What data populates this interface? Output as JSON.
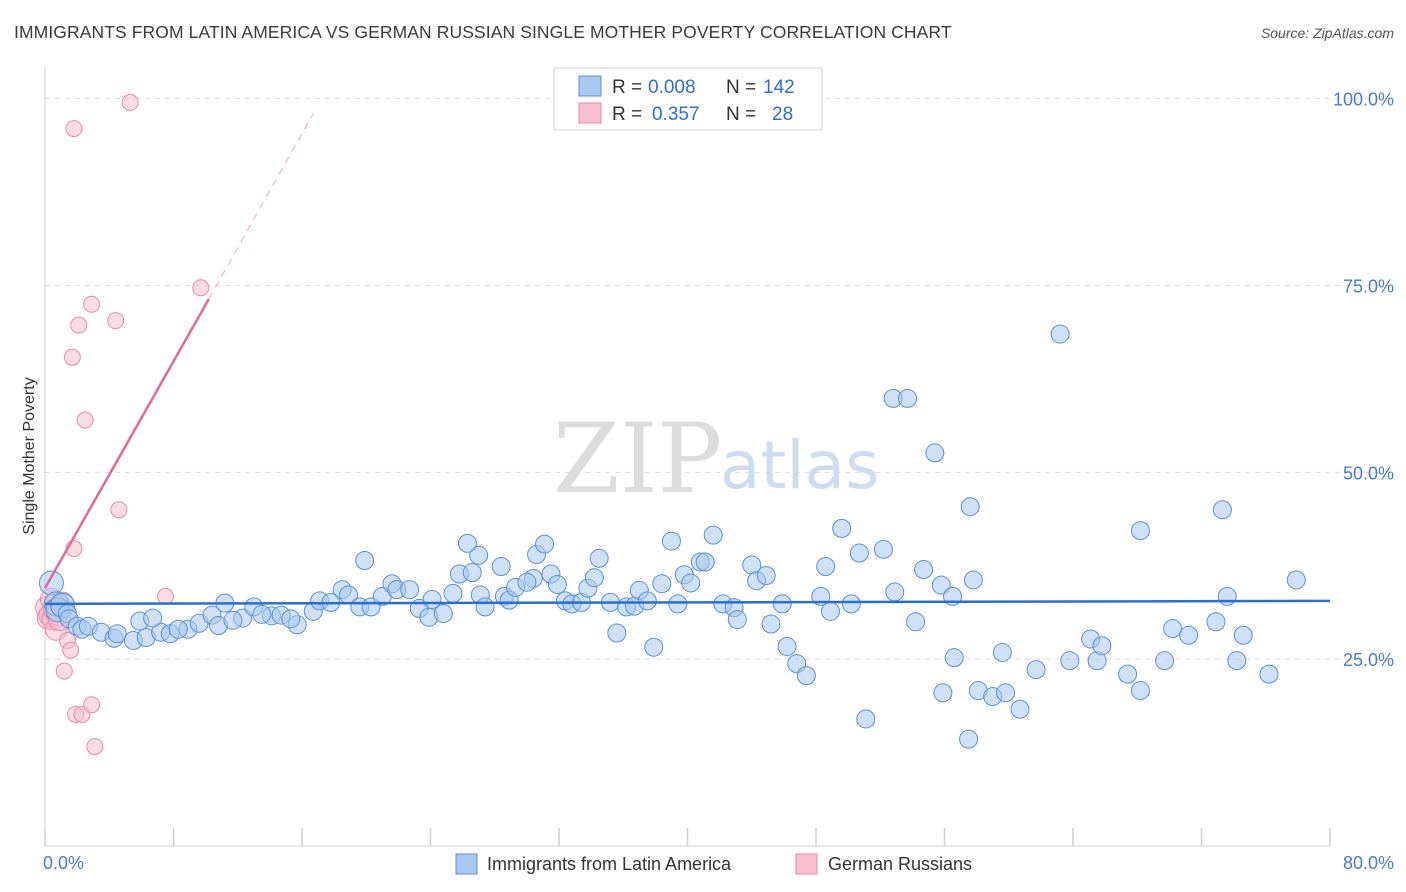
{
  "title": "IMMIGRANTS FROM LATIN AMERICA VS GERMAN RUSSIAN SINGLE MOTHER POVERTY CORRELATION CHART",
  "source": "Source: ZipAtlas.com",
  "watermark": {
    "zip": "ZIP",
    "atlas": "atlas"
  },
  "colors": {
    "blue_fill": "#a9c8f0",
    "blue_stroke": "#5a8fd6",
    "blue_line": "#2a6fd0",
    "pink_fill": "#f7bfd0",
    "pink_stroke": "#e58aa8",
    "pink_line": "#e0699a"
  },
  "legend": {
    "r_label": "R =",
    "n_label": "N =",
    "series": [
      {
        "r": "0.008",
        "n": "142"
      },
      {
        "r": "0.357",
        "n": "28"
      }
    ]
  },
  "chart_data": {
    "type": "scatter",
    "title": "IMMIGRANTS FROM LATIN AMERICA VS GERMAN RUSSIAN SINGLE MOTHER POVERTY CORRELATION CHART",
    "xlabel": "",
    "ylabel": "Single Mother Poverty",
    "xlim": [
      0,
      80
    ],
    "ylim": [
      0,
      102.5
    ],
    "x_tick_labels": [
      "0.0%",
      "80.0%"
    ],
    "y_ticks": [
      25,
      50,
      75,
      100
    ],
    "y_tick_labels": [
      "25.0%",
      "50.0%",
      "75.0%",
      "100.0%"
    ],
    "grid": true,
    "legend_position": "top-center",
    "series": [
      {
        "name": "Immigrants from Latin America",
        "r": 0.008,
        "n": 142,
        "trend": {
          "x": [
            0,
            80
          ],
          "y": [
            32.4,
            32.8
          ]
        },
        "points": [
          [
            0.4,
            35.2
          ],
          [
            0.7,
            32.4
          ],
          [
            0.8,
            31.6
          ],
          [
            1.1,
            32.2
          ],
          [
            1.4,
            31.1
          ],
          [
            1.5,
            30.4
          ],
          [
            2,
            29.4
          ],
          [
            2.3,
            29
          ],
          [
            2.7,
            29.4
          ],
          [
            3.5,
            28.6
          ],
          [
            4.3,
            27.8
          ],
          [
            4.5,
            28.4
          ],
          [
            5.5,
            27.5
          ],
          [
            6.3,
            27.9
          ],
          [
            7.2,
            28.6
          ],
          [
            7.8,
            28.4
          ],
          [
            8.9,
            29
          ],
          [
            5.9,
            30.1
          ],
          [
            6.7,
            30.5
          ],
          [
            8.3,
            29
          ],
          [
            9.6,
            29.8
          ],
          [
            10.4,
            30.9
          ],
          [
            11.2,
            32.5
          ],
          [
            10.8,
            29.5
          ],
          [
            12.3,
            30.5
          ],
          [
            11.7,
            30.2
          ],
          [
            14.1,
            30.8
          ],
          [
            13,
            32
          ],
          [
            13.5,
            31
          ],
          [
            14.7,
            30.9
          ],
          [
            15.7,
            29.6
          ],
          [
            15.3,
            30.4
          ],
          [
            16.7,
            31.4
          ],
          [
            17.1,
            32.8
          ],
          [
            17.8,
            32.6
          ],
          [
            18.5,
            34.3
          ],
          [
            18.9,
            33.6
          ],
          [
            19.6,
            32
          ],
          [
            20.3,
            32
          ],
          [
            19.9,
            38.2
          ],
          [
            21,
            33.4
          ],
          [
            21.6,
            35.1
          ],
          [
            21.9,
            34.3
          ],
          [
            22.7,
            34.3
          ],
          [
            23.3,
            31.8
          ],
          [
            23.9,
            30.6
          ],
          [
            24.1,
            33
          ],
          [
            24.8,
            31.1
          ],
          [
            25.4,
            33.8
          ],
          [
            25.8,
            36.4
          ],
          [
            26.6,
            36.6
          ],
          [
            27,
            38.9
          ],
          [
            27.1,
            33.6
          ],
          [
            27.4,
            32
          ],
          [
            26.3,
            40.5
          ],
          [
            28.6,
            33.4
          ],
          [
            28.9,
            32.9
          ],
          [
            29.3,
            34.6
          ],
          [
            28.4,
            37.4
          ],
          [
            30.4,
            35.8
          ],
          [
            30.6,
            39
          ],
          [
            30,
            35.3
          ],
          [
            31.1,
            40.4
          ],
          [
            31.5,
            36.4
          ],
          [
            31.9,
            35
          ],
          [
            32.4,
            32.8
          ],
          [
            32.8,
            32.4
          ],
          [
            33.4,
            32.6
          ],
          [
            33.8,
            34.5
          ],
          [
            34.2,
            35.9
          ],
          [
            34.5,
            38.5
          ],
          [
            35.2,
            32.6
          ],
          [
            35.6,
            28.5
          ],
          [
            36.2,
            32
          ],
          [
            36.7,
            32.1
          ],
          [
            37,
            34.2
          ],
          [
            37.5,
            32.8
          ],
          [
            37.9,
            26.6
          ],
          [
            38.4,
            35.1
          ],
          [
            39,
            40.8
          ],
          [
            39.4,
            32.4
          ],
          [
            39.8,
            36.3
          ],
          [
            40.2,
            35.2
          ],
          [
            40.8,
            38
          ],
          [
            41.1,
            38
          ],
          [
            41.6,
            41.6
          ],
          [
            42.2,
            32.4
          ],
          [
            42.9,
            31.9
          ],
          [
            43.1,
            30.3
          ],
          [
            44,
            37.6
          ],
          [
            44.3,
            35.5
          ],
          [
            44.9,
            36.2
          ],
          [
            45.2,
            29.7
          ],
          [
            45.9,
            32.4
          ],
          [
            46.2,
            26.7
          ],
          [
            46.8,
            24.4
          ],
          [
            47.4,
            22.8
          ],
          [
            48.6,
            37.4
          ],
          [
            48.9,
            31.4
          ],
          [
            48.3,
            33.4
          ],
          [
            49.6,
            42.5
          ],
          [
            50.2,
            32.4
          ],
          [
            50.7,
            39.2
          ],
          [
            51.1,
            17
          ],
          [
            52.2,
            39.7
          ],
          [
            52.8,
            59.9
          ],
          [
            52.9,
            34
          ],
          [
            53.7,
            59.9
          ],
          [
            54.2,
            30
          ],
          [
            54.7,
            37
          ],
          [
            55.4,
            52.6
          ],
          [
            55.8,
            34.9
          ],
          [
            55.9,
            20.5
          ],
          [
            56.5,
            33.4
          ],
          [
            57.8,
            35.6
          ],
          [
            57.6,
            45.4
          ],
          [
            58.1,
            20.8
          ],
          [
            59,
            20
          ],
          [
            59.8,
            20.5
          ],
          [
            59.6,
            25.9
          ],
          [
            60.7,
            18.3
          ],
          [
            61.7,
            23.6
          ],
          [
            63.2,
            68.5
          ],
          [
            63.8,
            24.8
          ],
          [
            65.1,
            27.7
          ],
          [
            65.5,
            24.8
          ],
          [
            65.8,
            26.8
          ],
          [
            67.4,
            23
          ],
          [
            68.2,
            42.2
          ],
          [
            68.2,
            20.8
          ],
          [
            69.7,
            24.8
          ],
          [
            70.2,
            29.1
          ],
          [
            71.2,
            28.2
          ],
          [
            72.9,
            30
          ],
          [
            73.3,
            45
          ],
          [
            73.6,
            33.4
          ],
          [
            74.6,
            28.2
          ],
          [
            74.2,
            24.8
          ],
          [
            76.2,
            23
          ],
          [
            77.9,
            35.6
          ],
          [
            57.5,
            14.3
          ],
          [
            56.6,
            25.2
          ]
        ]
      },
      {
        "name": "German Russians",
        "r": 0.357,
        "n": 28,
        "trend": {
          "x": [
            0,
            10.2
          ],
          "y": [
            34.5,
            73.2
          ]
        },
        "trend_dashed": {
          "x": [
            10.2,
            16.7
          ],
          "y": [
            73.2,
            98
          ]
        },
        "points": [
          [
            0.1,
            31.9
          ],
          [
            0.2,
            30.5
          ],
          [
            0.3,
            30.9
          ],
          [
            0.4,
            33
          ],
          [
            0.5,
            30.4
          ],
          [
            0.6,
            31.6
          ],
          [
            0.7,
            29
          ],
          [
            0.8,
            31
          ],
          [
            0.9,
            30.3
          ],
          [
            1.1,
            32.5
          ],
          [
            1.2,
            23.4
          ],
          [
            1.4,
            27.5
          ],
          [
            1.6,
            26.2
          ],
          [
            1.8,
            39.8
          ],
          [
            1.9,
            17.6
          ],
          [
            2.3,
            17.6
          ],
          [
            2.9,
            18.9
          ],
          [
            3.1,
            13.3
          ],
          [
            4.6,
            45
          ],
          [
            7.5,
            33.4
          ],
          [
            1.7,
            65.4
          ],
          [
            2.1,
            69.7
          ],
          [
            2.5,
            57
          ],
          [
            2.9,
            72.5
          ],
          [
            4.4,
            70.3
          ],
          [
            1.8,
            96
          ],
          [
            5.3,
            99.5
          ],
          [
            9.7,
            74.7
          ]
        ]
      }
    ]
  }
}
